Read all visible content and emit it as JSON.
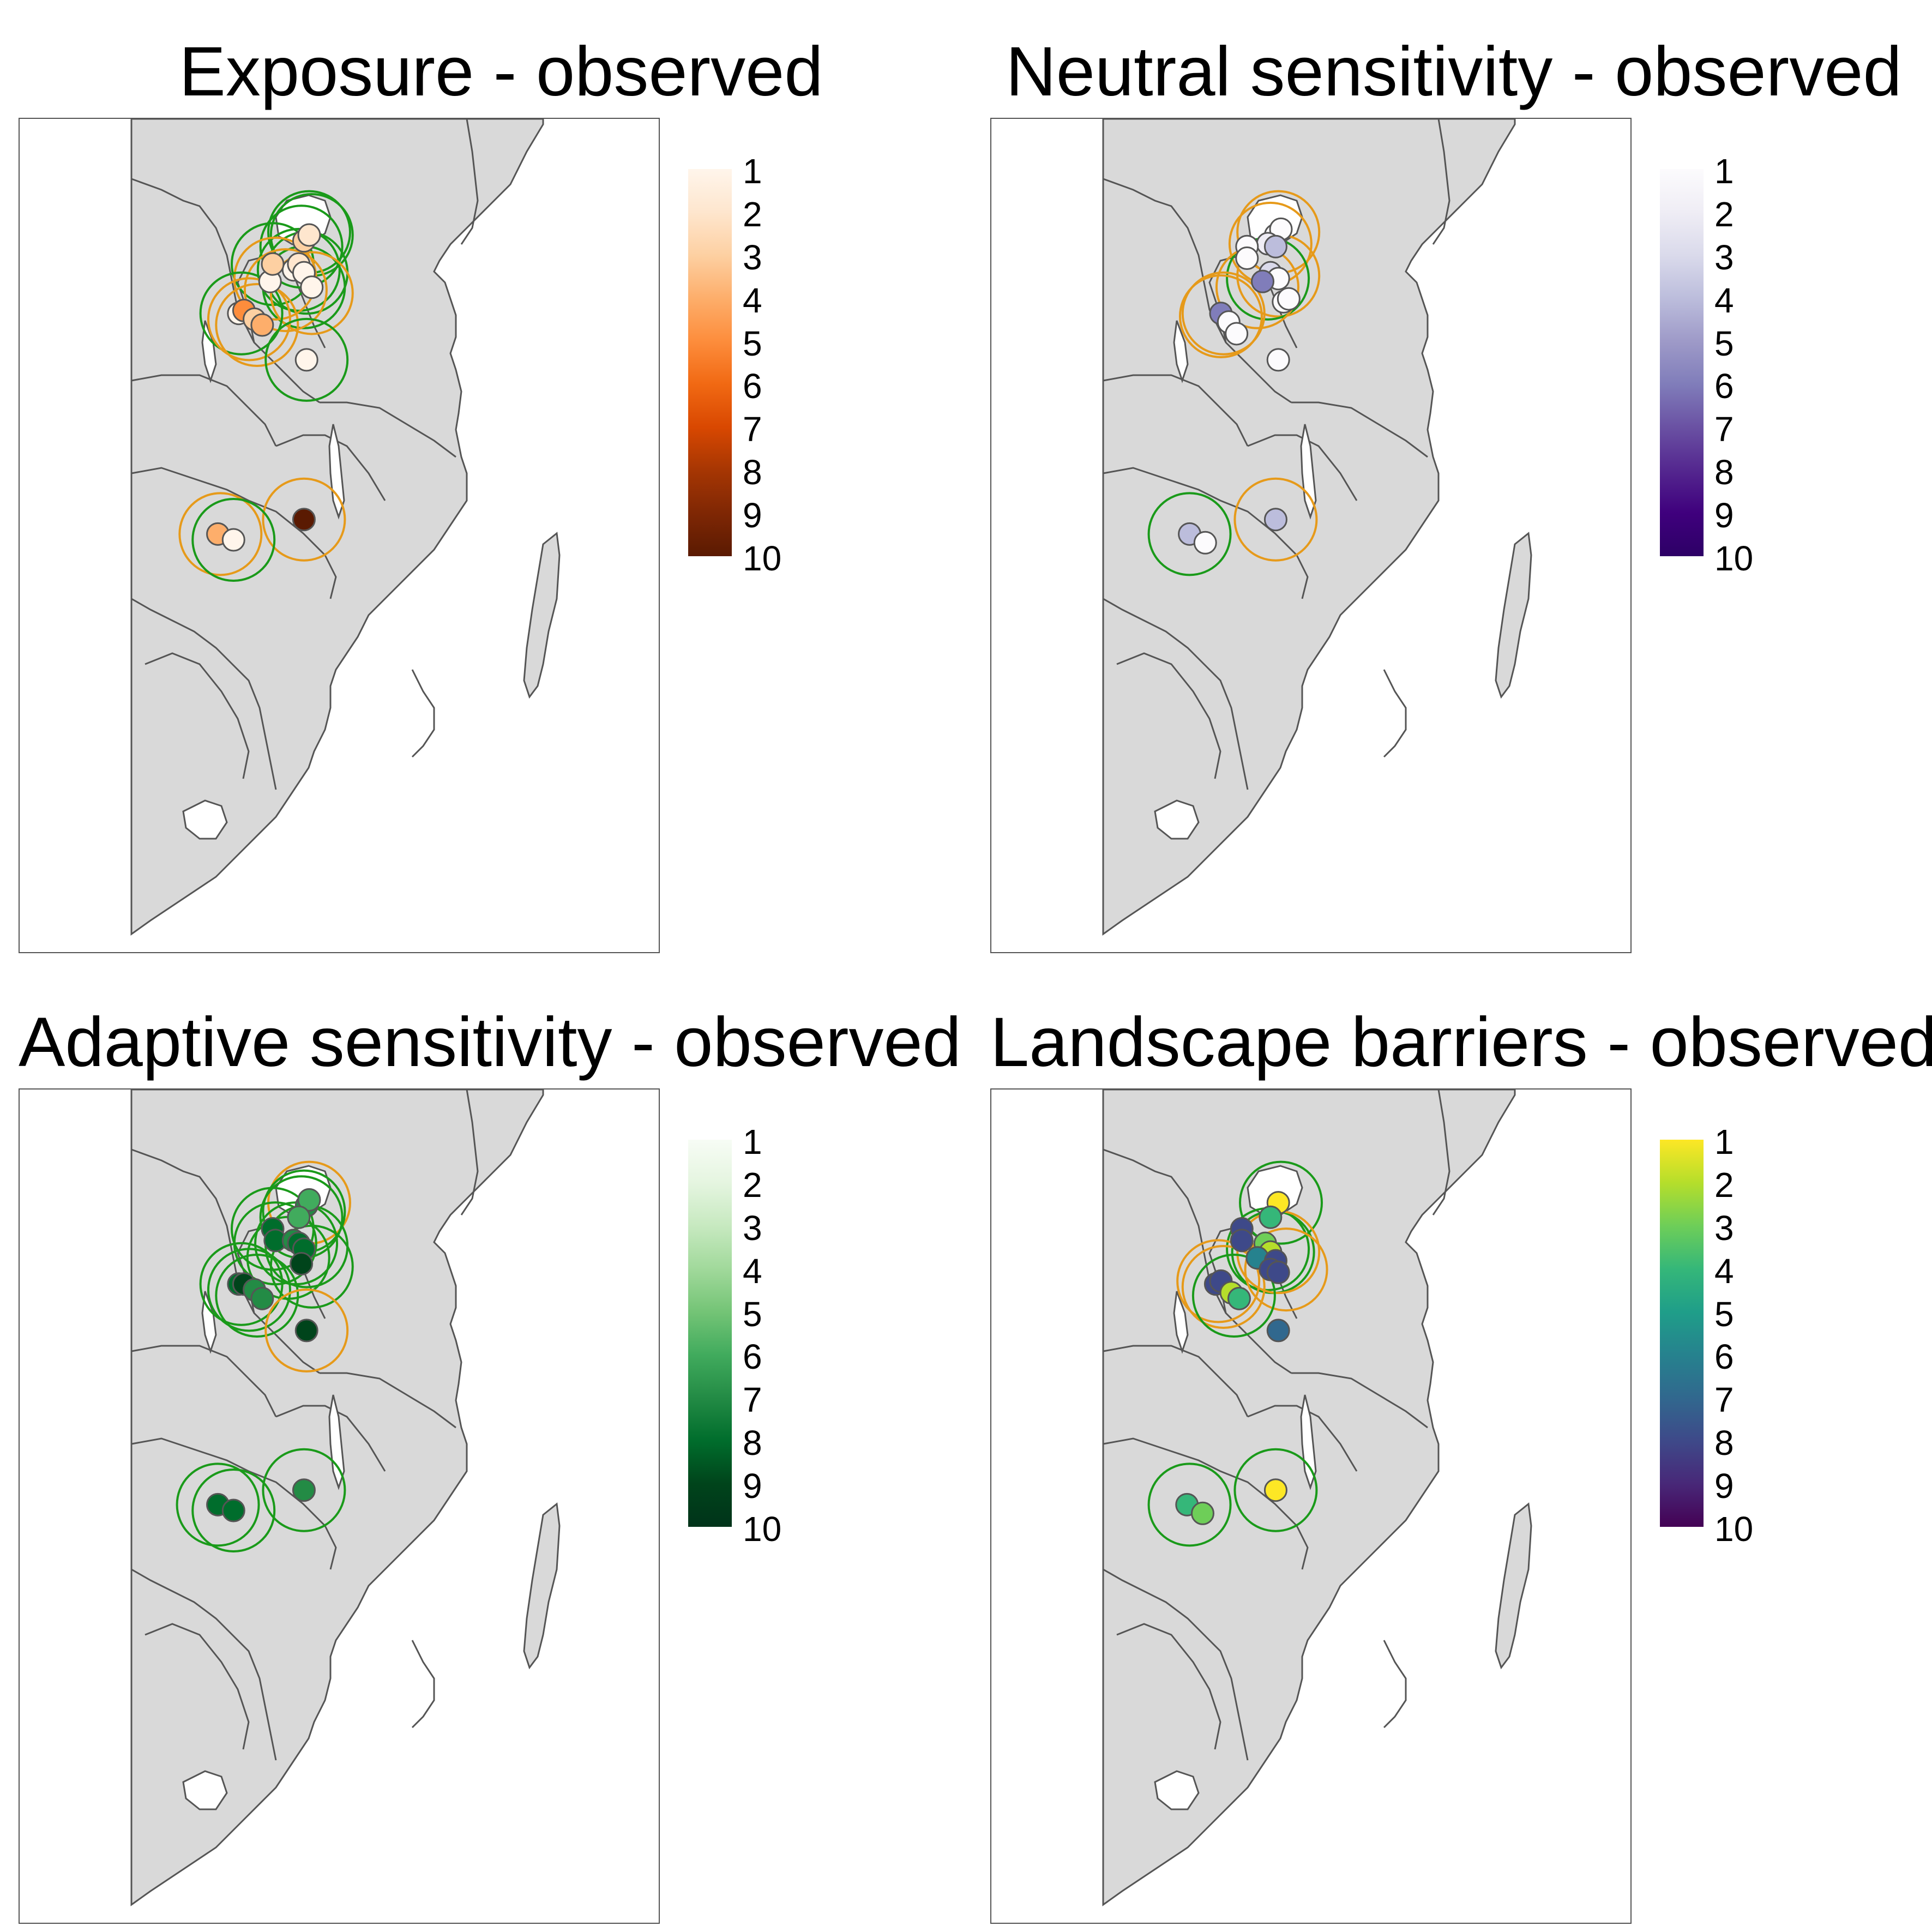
{
  "colors": {
    "land": "#d9d9d9",
    "border": "#555555",
    "water": "#ffffff",
    "ring_orange": "#e69a1a",
    "ring_green": "#1a9a1a"
  },
  "panels": [
    {
      "id": "exposure",
      "title": "Exposure - observed",
      "legend_ticks": [
        "1",
        "2",
        "3",
        "4",
        "5",
        "6",
        "7",
        "8",
        "9",
        "10"
      ],
      "palette": [
        "#fff5eb",
        "#fee6ce",
        "#fdd0a2",
        "#fdae6b",
        "#fd8d3c",
        "#f16913",
        "#d94801",
        "#a63603",
        "#7f2704",
        "#5a1a02"
      ],
      "points": [
        {
          "lon": 38.9,
          "lat": -5.2,
          "value": 3
        },
        {
          "lon": 39.1,
          "lat": -5.0,
          "value": 2
        },
        {
          "lon": 38.5,
          "lat": -6.2,
          "value": 1
        },
        {
          "lon": 38.7,
          "lat": -6.0,
          "value": 2
        },
        {
          "lon": 38.9,
          "lat": -6.3,
          "value": 1
        },
        {
          "lon": 39.2,
          "lat": -6.8,
          "value": 1
        },
        {
          "lon": 37.6,
          "lat": -6.6,
          "value": 1
        },
        {
          "lon": 37.7,
          "lat": -6.0,
          "value": 3
        },
        {
          "lon": 36.4,
          "lat": -7.7,
          "value": 1
        },
        {
          "lon": 36.6,
          "lat": -7.6,
          "value": 5
        },
        {
          "lon": 37.0,
          "lat": -7.9,
          "value": 3
        },
        {
          "lon": 37.3,
          "lat": -8.1,
          "value": 4
        },
        {
          "lon": 39.0,
          "lat": -9.3,
          "value": 1
        },
        {
          "lon": 38.9,
          "lat": -14.8,
          "value": 10
        },
        {
          "lon": 35.6,
          "lat": -15.3,
          "value": 4
        },
        {
          "lon": 36.2,
          "lat": -15.5,
          "value": 1
        }
      ],
      "rings": [
        {
          "lon": 39.1,
          "lat": -4.9,
          "color": "green"
        },
        {
          "lon": 39.2,
          "lat": -5.0,
          "color": "green"
        },
        {
          "lon": 38.8,
          "lat": -5.4,
          "color": "green"
        },
        {
          "lon": 38.7,
          "lat": -6.2,
          "color": "green"
        },
        {
          "lon": 39.0,
          "lat": -6.3,
          "color": "green"
        },
        {
          "lon": 38.9,
          "lat": -6.8,
          "color": "green"
        },
        {
          "lon": 37.7,
          "lat": -6.0,
          "color": "green"
        },
        {
          "lon": 37.8,
          "lat": -6.5,
          "color": "orange"
        },
        {
          "lon": 38.2,
          "lat": -6.9,
          "color": "orange"
        },
        {
          "lon": 39.2,
          "lat": -7.0,
          "color": "orange"
        },
        {
          "lon": 36.5,
          "lat": -7.7,
          "color": "green"
        },
        {
          "lon": 36.8,
          "lat": -7.9,
          "color": "orange"
        },
        {
          "lon": 37.1,
          "lat": -8.1,
          "color": "orange"
        },
        {
          "lon": 39.0,
          "lat": -9.3,
          "color": "green"
        },
        {
          "lon": 38.9,
          "lat": -14.8,
          "color": "orange"
        },
        {
          "lon": 35.7,
          "lat": -15.3,
          "color": "orange"
        },
        {
          "lon": 36.2,
          "lat": -15.5,
          "color": "green"
        }
      ]
    },
    {
      "id": "neutral",
      "title": "Neutral sensitivity - observed",
      "legend_ticks": [
        "1",
        "2",
        "3",
        "4",
        "5",
        "6",
        "7",
        "8",
        "9",
        "10"
      ],
      "palette": [
        "#fcfbfd",
        "#efedf5",
        "#dadaeb",
        "#bcbddc",
        "#9e9ac8",
        "#807dba",
        "#6a51a3",
        "#54278f",
        "#3f007d",
        "#2d0066"
      ],
      "points": [
        {
          "lon": 38.9,
          "lat": -5.0,
          "value": 1
        },
        {
          "lon": 39.1,
          "lat": -4.8,
          "value": 1
        },
        {
          "lon": 38.6,
          "lat": -5.3,
          "value": 2
        },
        {
          "lon": 38.9,
          "lat": -5.4,
          "value": 4
        },
        {
          "lon": 37.8,
          "lat": -5.4,
          "value": 1
        },
        {
          "lon": 37.8,
          "lat": -5.8,
          "value": 1
        },
        {
          "lon": 38.7,
          "lat": -6.3,
          "value": 3
        },
        {
          "lon": 39.0,
          "lat": -6.5,
          "value": 1
        },
        {
          "lon": 38.4,
          "lat": -6.6,
          "value": 6
        },
        {
          "lon": 39.2,
          "lat": -7.3,
          "value": 1
        },
        {
          "lon": 39.4,
          "lat": -7.2,
          "value": 1
        },
        {
          "lon": 36.8,
          "lat": -7.7,
          "value": 6
        },
        {
          "lon": 37.1,
          "lat": -8.0,
          "value": 1
        },
        {
          "lon": 37.4,
          "lat": -8.4,
          "value": 1
        },
        {
          "lon": 39.0,
          "lat": -9.3,
          "value": 1
        },
        {
          "lon": 38.9,
          "lat": -14.8,
          "value": 4
        },
        {
          "lon": 35.6,
          "lat": -15.3,
          "value": 4
        },
        {
          "lon": 36.2,
          "lat": -15.6,
          "value": 1
        }
      ],
      "rings": [
        {
          "lon": 39.0,
          "lat": -4.9,
          "color": "orange"
        },
        {
          "lon": 38.7,
          "lat": -5.3,
          "color": "orange"
        },
        {
          "lon": 39.0,
          "lat": -6.4,
          "color": "orange"
        },
        {
          "lon": 38.6,
          "lat": -6.5,
          "color": "green"
        },
        {
          "lon": 38.2,
          "lat": -6.8,
          "color": "orange"
        },
        {
          "lon": 36.9,
          "lat": -7.7,
          "color": "orange"
        },
        {
          "lon": 36.8,
          "lat": -7.8,
          "color": "orange"
        },
        {
          "lon": 38.9,
          "lat": -14.8,
          "color": "orange"
        },
        {
          "lon": 35.6,
          "lat": -15.3,
          "color": "green"
        }
      ]
    },
    {
      "id": "adaptive",
      "title": "Adaptive sensitivity - observed",
      "legend_ticks": [
        "1",
        "2",
        "3",
        "4",
        "5",
        "6",
        "7",
        "8",
        "9",
        "10"
      ],
      "palette": [
        "#f7fcf5",
        "#e5f5e0",
        "#c7e9c0",
        "#a1d99b",
        "#74c476",
        "#41ab5d",
        "#238b45",
        "#006d2c",
        "#00441b",
        "#00331a"
      ],
      "points": [
        {
          "lon": 39.0,
          "lat": -5.0,
          "value": 7
        },
        {
          "lon": 39.1,
          "lat": -4.8,
          "value": 6
        },
        {
          "lon": 38.7,
          "lat": -5.4,
          "value": 6
        },
        {
          "lon": 37.7,
          "lat": -5.8,
          "value": 8
        },
        {
          "lon": 37.8,
          "lat": -6.2,
          "value": 8
        },
        {
          "lon": 38.5,
          "lat": -6.2,
          "value": 7
        },
        {
          "lon": 38.7,
          "lat": -6.3,
          "value": 8
        },
        {
          "lon": 38.9,
          "lat": -6.5,
          "value": 8
        },
        {
          "lon": 38.8,
          "lat": -7.0,
          "value": 9
        },
        {
          "lon": 36.4,
          "lat": -7.7,
          "value": 8
        },
        {
          "lon": 36.6,
          "lat": -7.7,
          "value": 9
        },
        {
          "lon": 37.0,
          "lat": -7.9,
          "value": 7
        },
        {
          "lon": 37.3,
          "lat": -8.2,
          "value": 7
        },
        {
          "lon": 39.0,
          "lat": -9.3,
          "value": 9
        },
        {
          "lon": 38.9,
          "lat": -14.8,
          "value": 7
        },
        {
          "lon": 35.6,
          "lat": -15.3,
          "value": 8
        },
        {
          "lon": 36.2,
          "lat": -15.5,
          "value": 8
        }
      ],
      "rings": [
        {
          "lon": 39.1,
          "lat": -4.9,
          "color": "orange"
        },
        {
          "lon": 38.9,
          "lat": -5.2,
          "color": "green"
        },
        {
          "lon": 38.8,
          "lat": -5.4,
          "color": "green"
        },
        {
          "lon": 37.7,
          "lat": -5.8,
          "color": "green"
        },
        {
          "lon": 37.8,
          "lat": -6.3,
          "color": "green"
        },
        {
          "lon": 38.6,
          "lat": -6.3,
          "color": "green"
        },
        {
          "lon": 39.0,
          "lat": -6.4,
          "color": "green"
        },
        {
          "lon": 38.3,
          "lat": -6.8,
          "color": "green"
        },
        {
          "lon": 39.2,
          "lat": -7.1,
          "color": "green"
        },
        {
          "lon": 36.5,
          "lat": -7.7,
          "color": "green"
        },
        {
          "lon": 36.8,
          "lat": -7.9,
          "color": "green"
        },
        {
          "lon": 37.1,
          "lat": -8.1,
          "color": "green"
        },
        {
          "lon": 39.0,
          "lat": -9.3,
          "color": "orange"
        },
        {
          "lon": 38.9,
          "lat": -14.8,
          "color": "green"
        },
        {
          "lon": 35.6,
          "lat": -15.3,
          "color": "green"
        },
        {
          "lon": 36.2,
          "lat": -15.5,
          "color": "green"
        }
      ]
    },
    {
      "id": "landscape",
      "title": "Landscape barriers - observed",
      "legend_ticks": [
        "1",
        "2",
        "3",
        "4",
        "5",
        "6",
        "7",
        "8",
        "9",
        "10"
      ],
      "palette": [
        "#fde725",
        "#b5de2b",
        "#6ece58",
        "#35b779",
        "#1f9e89",
        "#26828e",
        "#31688e",
        "#3e4989",
        "#482878",
        "#440154"
      ],
      "points": [
        {
          "lon": 39.0,
          "lat": -4.9,
          "value": 1
        },
        {
          "lon": 38.7,
          "lat": -5.4,
          "value": 4
        },
        {
          "lon": 37.6,
          "lat": -5.8,
          "value": 8
        },
        {
          "lon": 37.6,
          "lat": -6.2,
          "value": 8
        },
        {
          "lon": 38.5,
          "lat": -6.3,
          "value": 3
        },
        {
          "lon": 38.7,
          "lat": -6.6,
          "value": 2
        },
        {
          "lon": 38.2,
          "lat": -6.8,
          "value": 6
        },
        {
          "lon": 38.9,
          "lat": -6.9,
          "value": 8
        },
        {
          "lon": 38.7,
          "lat": -7.2,
          "value": 8
        },
        {
          "lon": 39.0,
          "lat": -7.3,
          "value": 8
        },
        {
          "lon": 36.6,
          "lat": -7.7,
          "value": 8
        },
        {
          "lon": 36.8,
          "lat": -7.6,
          "value": 8
        },
        {
          "lon": 37.2,
          "lat": -8.0,
          "value": 2
        },
        {
          "lon": 37.5,
          "lat": -8.2,
          "value": 4
        },
        {
          "lon": 39.0,
          "lat": -9.3,
          "value": 7
        },
        {
          "lon": 38.9,
          "lat": -14.8,
          "value": 1
        },
        {
          "lon": 35.5,
          "lat": -15.3,
          "value": 4
        },
        {
          "lon": 36.1,
          "lat": -15.6,
          "value": 3
        }
      ],
      "rings": [
        {
          "lon": 39.1,
          "lat": -4.9,
          "color": "green"
        },
        {
          "lon": 38.6,
          "lat": -6.5,
          "color": "green"
        },
        {
          "lon": 38.8,
          "lat": -6.6,
          "color": "green"
        },
        {
          "lon": 39.0,
          "lat": -6.6,
          "color": "orange"
        },
        {
          "lon": 39.3,
          "lat": -7.2,
          "color": "orange"
        },
        {
          "lon": 36.7,
          "lat": -7.6,
          "color": "orange"
        },
        {
          "lon": 36.9,
          "lat": -7.8,
          "color": "orange"
        },
        {
          "lon": 37.3,
          "lat": -8.1,
          "color": "green"
        },
        {
          "lon": 38.9,
          "lat": -14.8,
          "color": "green"
        },
        {
          "lon": 35.6,
          "lat": -15.3,
          "color": "green"
        }
      ]
    }
  ]
}
